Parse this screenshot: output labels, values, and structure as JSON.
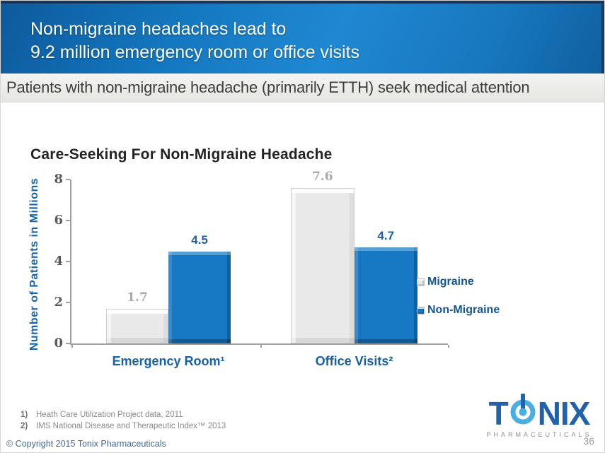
{
  "header": {
    "title_line1": "Non-migraine headaches lead to",
    "title_line2": "9.2 million emergency room or office visits"
  },
  "subtitle_band": {
    "text": "Patients with non-migraine headache (primarily ETTH) seek medical attention"
  },
  "chart_data": {
    "type": "bar",
    "title": "Care-Seeking For Non-Migraine Headache",
    "categories": [
      "Emergency Room¹",
      "Office Visits²"
    ],
    "series": [
      {
        "name": "Migraine",
        "values": [
          1.7,
          7.6
        ],
        "color": "#e9e9e9",
        "label_color": "#a8a8a8"
      },
      {
        "name": "Non-Migraine",
        "values": [
          4.5,
          4.7
        ],
        "color": "#1779c4",
        "label_color": "#1b5ea8"
      }
    ],
    "xlabel": "",
    "ylabel": "Number of Patients in Millions",
    "ylim": [
      0,
      8
    ],
    "yticks": [
      0,
      2,
      4,
      6,
      8
    ],
    "grid": false,
    "legend_position": "right"
  },
  "footnotes": [
    {
      "num": "1)",
      "text": "Heath Care Utilization Project data, 2011"
    },
    {
      "num": "2)",
      "text": "IMS National Disease and Therapeutic Index™ 2013"
    }
  ],
  "footer": {
    "copyright": "© Copyright 2015 Tonix Pharmaceuticals",
    "page_number": "36"
  },
  "logo": {
    "word_start": "T",
    "word_end": "NIX",
    "subtext": "PHARMACEUTICALS",
    "dark_blue": "#2162ac",
    "light_blue": "#49aee2"
  }
}
